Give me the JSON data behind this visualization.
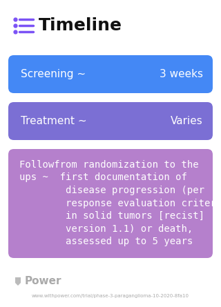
{
  "title": "Timeline",
  "bg_color": "#ffffff",
  "title_color": "#111111",
  "title_fontsize": 18,
  "icon_color": "#7b52f5",
  "icon_line_color": "#7b52f5",
  "rows": [
    {
      "label": "Screening ~",
      "value": "3 weeks",
      "bg_color": "#4488f5",
      "text_color": "#ffffff",
      "fontsize": 11
    },
    {
      "label": "Treatment ~",
      "value": "Varies",
      "bg_color": "#7b6fd4",
      "text_color": "#ffffff",
      "fontsize": 11
    },
    {
      "line1": "Followfrom randomization to the",
      "line2": "ups ~  first documentation of",
      "line3": "        disease progression (per",
      "line4": "        response evaluation criteria",
      "line5": "        in solid tumors [recist]",
      "line6": "        version 1.1) or death,",
      "line7": "        assessed up to 5 years",
      "bg_color": "#b580cc",
      "text_color": "#ffffff",
      "fontsize": 10
    }
  ],
  "footer_logo_text": "Power",
  "footer_url": "www.withpower.com/trial/phase-3-paraganglioma-10-2020-8fa10",
  "footer_color": "#aaaaaa"
}
